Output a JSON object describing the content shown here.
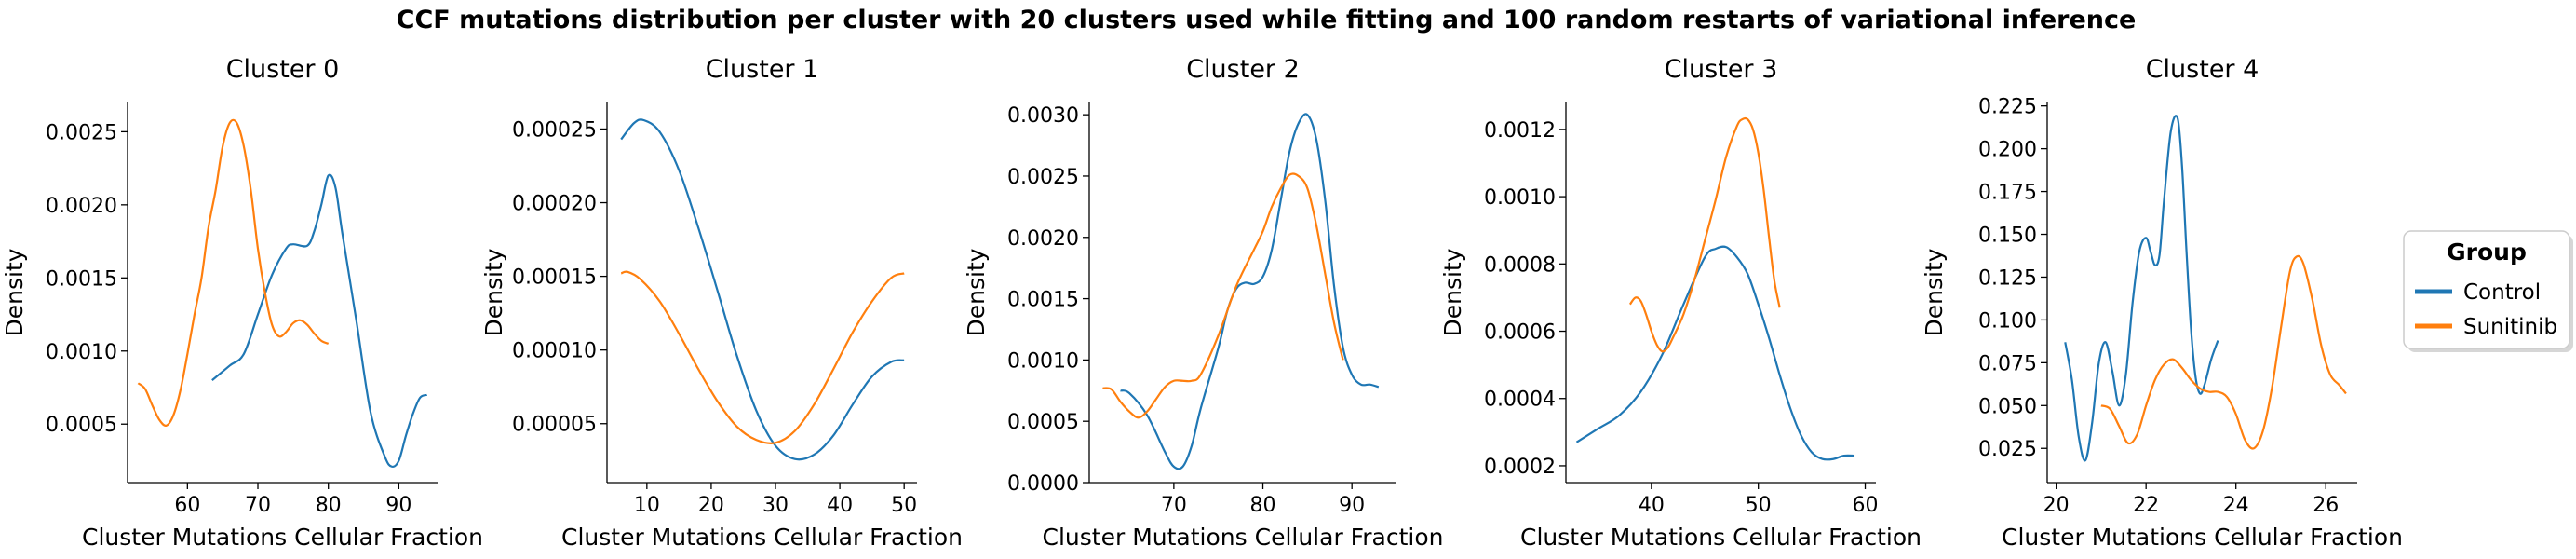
{
  "suptitle": "CCF mutations distribution per cluster with 20 clusters used while fitting and 100 random restarts of variational inference",
  "colors": {
    "Control": "#1f77b4",
    "Sunitinib": "#ff7f0e"
  },
  "legend": {
    "title": "Group",
    "entries": [
      "Control",
      "Sunitinib"
    ]
  },
  "chart_data": [
    {
      "type": "line",
      "title": "Cluster 0",
      "xlabel": "Cluster Mutations Cellular Fraction",
      "ylabel": "Density",
      "xlim": [
        51.5,
        95.5
      ],
      "ylim": [
        0.0001,
        0.0027
      ],
      "xticks": [
        60,
        70,
        80,
        90
      ],
      "xtick_labels": [
        "60",
        "70",
        "80",
        "90"
      ],
      "yticks": [
        0.0005,
        0.001,
        0.0015,
        0.002,
        0.0025
      ],
      "ytick_labels": [
        "0.0005",
        "0.0010",
        "0.0015",
        "0.0020",
        "0.0025"
      ],
      "series": [
        {
          "name": "Control",
          "x": [
            63.5,
            66,
            68,
            70,
            72,
            74,
            75,
            77,
            78,
            79,
            80,
            81,
            82,
            84,
            86,
            88,
            89,
            90,
            91,
            92,
            93,
            94
          ],
          "y": [
            0.0008,
            0.0009,
            0.00098,
            0.00125,
            0.00152,
            0.0017,
            0.00173,
            0.00172,
            0.00182,
            0.002,
            0.0022,
            0.00212,
            0.0018,
            0.0012,
            0.00058,
            0.00028,
            0.00021,
            0.00025,
            0.00042,
            0.00057,
            0.00068,
            0.0007
          ]
        },
        {
          "name": "Sunitinib",
          "x": [
            53,
            54,
            55,
            56,
            57,
            58,
            59,
            60,
            61,
            62,
            63,
            64,
            65,
            66,
            67,
            68,
            69,
            70,
            71,
            72,
            73,
            74,
            75,
            76,
            77,
            78,
            79,
            80
          ],
          "y": [
            0.00078,
            0.00074,
            0.00063,
            0.00053,
            0.00049,
            0.00056,
            0.00073,
            0.00098,
            0.00125,
            0.0015,
            0.00185,
            0.0021,
            0.0024,
            0.00256,
            0.00256,
            0.0024,
            0.0021,
            0.0017,
            0.0014,
            0.00118,
            0.0011,
            0.00113,
            0.00119,
            0.00121,
            0.00118,
            0.00112,
            0.00107,
            0.00105
          ]
        }
      ]
    },
    {
      "type": "line",
      "title": "Cluster 1",
      "xlabel": "Cluster Mutations Cellular Fraction",
      "ylabel": "Density",
      "xlim": [
        3.8,
        52
      ],
      "ylim": [
        1e-05,
        0.000268
      ],
      "xticks": [
        10,
        20,
        30,
        40,
        50
      ],
      "xtick_labels": [
        "10",
        "20",
        "30",
        "40",
        "50"
      ],
      "yticks": [
        5e-05,
        0.0001,
        0.00015,
        0.0002,
        0.00025
      ],
      "ytick_labels": [
        "0.00005",
        "0.00010",
        "0.00015",
        "0.00020",
        "0.00025"
      ],
      "series": [
        {
          "name": "Control",
          "x": [
            6,
            8,
            9.5,
            12,
            15,
            18,
            21,
            24,
            27,
            30,
            33,
            36,
            39,
            42,
            45,
            48,
            50
          ],
          "y": [
            0.000243,
            0.000254,
            0.000256,
            0.000248,
            0.000222,
            0.000183,
            0.00014,
            9.6e-05,
            5.9e-05,
            3.5e-05,
            2.6e-05,
            2.9e-05,
            4.2e-05,
            6.3e-05,
            8.2e-05,
            9.2e-05,
            9.3e-05
          ]
        },
        {
          "name": "Sunitinib",
          "x": [
            6,
            7,
            9,
            12,
            15,
            18,
            21,
            24,
            27,
            30,
            33,
            36,
            39,
            42,
            45,
            48,
            50
          ],
          "y": [
            0.000152,
            0.000153,
            0.000148,
            0.000133,
            0.000111,
            8.7e-05,
            6.5e-05,
            4.8e-05,
            3.9e-05,
            3.7e-05,
            4.5e-05,
            6.3e-05,
            8.7e-05,
            0.000112,
            0.000133,
            0.000149,
            0.000152
          ]
        }
      ]
    },
    {
      "type": "line",
      "title": "Cluster 2",
      "xlabel": "Cluster Mutations Cellular Fraction",
      "ylabel": "Density",
      "xlim": [
        60.5,
        95
      ],
      "ylim": [
        0,
        0.0031
      ],
      "xticks": [
        70,
        80,
        90
      ],
      "xtick_labels": [
        "70",
        "80",
        "90"
      ],
      "yticks": [
        0,
        0.0005,
        0.001,
        0.0015,
        0.002,
        0.0025,
        0.003
      ],
      "ytick_labels": [
        "0.0000",
        "0.0005",
        "0.0010",
        "0.0015",
        "0.0020",
        "0.0025",
        "0.0030"
      ],
      "series": [
        {
          "name": "Control",
          "x": [
            64,
            65,
            67,
            69,
            70,
            71,
            72,
            73,
            75,
            76,
            77,
            78,
            79,
            80,
            81,
            82,
            83,
            84,
            85,
            86,
            87,
            88,
            89,
            90,
            91,
            92,
            93
          ],
          "y": [
            0.00075,
            0.00073,
            0.00055,
            0.00025,
            0.00013,
            0.00013,
            0.0003,
            0.0006,
            0.0011,
            0.0014,
            0.00158,
            0.00163,
            0.00162,
            0.00168,
            0.0019,
            0.0023,
            0.0027,
            0.00293,
            0.003,
            0.0028,
            0.0023,
            0.0016,
            0.0011,
            0.00088,
            0.0008,
            0.0008,
            0.00078
          ]
        },
        {
          "name": "Sunitinib",
          "x": [
            62,
            63,
            64,
            65,
            66,
            67,
            68,
            69,
            70,
            71,
            72,
            73,
            75,
            77,
            79,
            80,
            81,
            82,
            83,
            84,
            85,
            86,
            87,
            88,
            89
          ],
          "y": [
            0.00077,
            0.00076,
            0.00066,
            0.00058,
            0.00053,
            0.00058,
            0.00068,
            0.00078,
            0.00083,
            0.00083,
            0.00083,
            0.00088,
            0.0012,
            0.0016,
            0.0019,
            0.00205,
            0.00225,
            0.0024,
            0.00251,
            0.0025,
            0.0024,
            0.0021,
            0.0017,
            0.0013,
            0.001
          ]
        }
      ]
    },
    {
      "type": "line",
      "title": "Cluster 3",
      "xlabel": "Cluster Mutations Cellular Fraction",
      "ylabel": "Density",
      "xlim": [
        32,
        61
      ],
      "ylim": [
        0.00015,
        0.00128
      ],
      "xticks": [
        40,
        50,
        60
      ],
      "xtick_labels": [
        "40",
        "50",
        "60"
      ],
      "yticks": [
        0.0002,
        0.0004,
        0.0006,
        0.0008,
        0.001,
        0.0012
      ],
      "ytick_labels": [
        "0.0002",
        "0.0004",
        "0.0006",
        "0.0008",
        "0.0010",
        "0.0012"
      ],
      "series": [
        {
          "name": "Control",
          "x": [
            33,
            35,
            37,
            39,
            41,
            43,
            45,
            46,
            47,
            48,
            49,
            50,
            51,
            52,
            53,
            54,
            55,
            56,
            57,
            58,
            59
          ],
          "y": [
            0.00027,
            0.00031,
            0.00035,
            0.00042,
            0.00053,
            0.00068,
            0.00082,
            0.000845,
            0.00085,
            0.00082,
            0.00077,
            0.00068,
            0.00058,
            0.00047,
            0.00037,
            0.00029,
            0.00024,
            0.00022,
            0.00022,
            0.00023,
            0.00023
          ]
        },
        {
          "name": "Sunitinib",
          "x": [
            38,
            38.5,
            39,
            39.5,
            40,
            40.5,
            41,
            41.5,
            42,
            43,
            44,
            45,
            46,
            47,
            48,
            48.5,
            49,
            49.5,
            50,
            50.5,
            51,
            51.5,
            52
          ],
          "y": [
            0.00068,
            0.0007,
            0.00069,
            0.00065,
            0.0006,
            0.00056,
            0.00054,
            0.00055,
            0.00058,
            0.00065,
            0.00075,
            0.00087,
            0.00099,
            0.00112,
            0.00121,
            0.00123,
            0.00123,
            0.0012,
            0.00113,
            0.00102,
            0.00088,
            0.00075,
            0.00067
          ]
        }
      ]
    },
    {
      "type": "line",
      "title": "Cluster 4",
      "xlabel": "Cluster Mutations Cellular Fraction",
      "ylabel": "Density",
      "xlim": [
        19.8,
        26.7
      ],
      "ylim": [
        0.005,
        0.227
      ],
      "xticks": [
        20,
        22,
        24,
        26
      ],
      "xtick_labels": [
        "20",
        "22",
        "24",
        "26"
      ],
      "yticks": [
        0.025,
        0.05,
        0.075,
        0.1,
        0.125,
        0.15,
        0.175,
        0.2,
        0.225
      ],
      "ytick_labels": [
        "0.025",
        "0.050",
        "0.075",
        "0.100",
        "0.125",
        "0.150",
        "0.175",
        "0.200",
        "0.225"
      ],
      "series": [
        {
          "name": "Control",
          "x": [
            20.2,
            20.35,
            20.5,
            20.65,
            20.8,
            20.95,
            21.1,
            21.25,
            21.4,
            21.55,
            21.7,
            21.85,
            22,
            22.1,
            22.2,
            22.3,
            22.4,
            22.55,
            22.7,
            22.8,
            22.9,
            23,
            23.1,
            23.2,
            23.3,
            23.45,
            23.6
          ],
          "y": [
            0.087,
            0.065,
            0.032,
            0.018,
            0.04,
            0.075,
            0.087,
            0.07,
            0.05,
            0.068,
            0.11,
            0.14,
            0.148,
            0.14,
            0.132,
            0.138,
            0.17,
            0.21,
            0.218,
            0.19,
            0.14,
            0.095,
            0.067,
            0.057,
            0.062,
            0.077,
            0.088
          ]
        },
        {
          "name": "Sunitinib",
          "x": [
            21,
            21.2,
            21.4,
            21.6,
            21.8,
            22,
            22.2,
            22.4,
            22.6,
            22.8,
            23,
            23.2,
            23.4,
            23.6,
            23.8,
            24,
            24.2,
            24.4,
            24.6,
            24.8,
            25,
            25.2,
            25.35,
            25.5,
            25.7,
            25.9,
            26.1,
            26.3,
            26.45
          ],
          "y": [
            0.05,
            0.048,
            0.038,
            0.028,
            0.033,
            0.05,
            0.065,
            0.074,
            0.077,
            0.072,
            0.065,
            0.06,
            0.058,
            0.058,
            0.055,
            0.045,
            0.03,
            0.025,
            0.035,
            0.06,
            0.095,
            0.128,
            0.137,
            0.133,
            0.112,
            0.085,
            0.068,
            0.062,
            0.057
          ]
        }
      ]
    }
  ]
}
